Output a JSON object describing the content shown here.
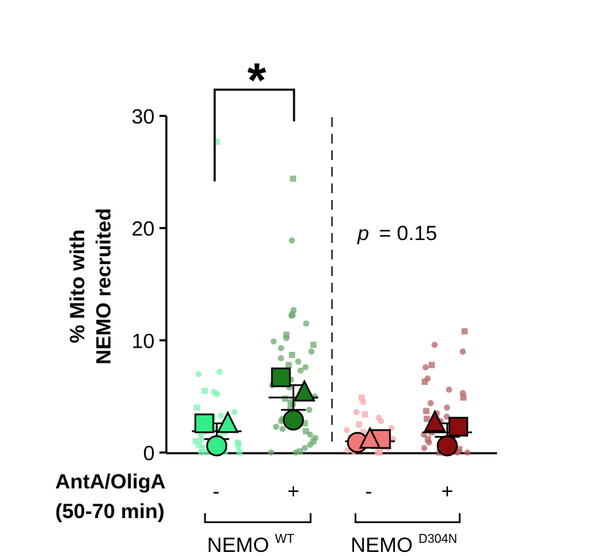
{
  "chart_data": {
    "type": "scatter",
    "title": "",
    "ylabel_line1": "% Mito with",
    "ylabel_line2": "NEMO recruited",
    "ylim": [
      0,
      30
    ],
    "yticks": [
      0,
      10,
      20,
      30
    ],
    "ytick_labels": [
      "0",
      "10",
      "20",
      "30"
    ],
    "row_label_line1": "AntA/OligA",
    "row_label_line2": "(50-70 min)",
    "conditions": [
      "-",
      "+",
      "-",
      "+"
    ],
    "groups": [
      {
        "name": "NEMO",
        "superscript": "WT"
      },
      {
        "name": "NEMO",
        "superscript": "D304N"
      }
    ],
    "significance": {
      "marker": "*",
      "between": [
        0,
        1
      ]
    },
    "pvalue": {
      "label": "p",
      "text": "= 0.15",
      "group": 1
    },
    "colors": {
      "wt_minus": "#33ee88",
      "wt_plus": "#1b7a1b",
      "wt_plus_light": "#6ab86a",
      "d_minus": "#f07878",
      "d_minus_light": "#f4a0a0",
      "d_plus": "#8b0d0d",
      "d_plus_light": "#b25050"
    },
    "series": [
      {
        "name": "NEMO WT, AntA/OligA -",
        "category": 0,
        "color": "#33ee88",
        "points": [
          27.7,
          7.2,
          7.0,
          5.5,
          5.4,
          5.2,
          4.0,
          3.6,
          3.3,
          3.1,
          2.8,
          2.6,
          2.5,
          2.3,
          2.1,
          1.9,
          1.8,
          1.6,
          1.4,
          1.3,
          1.2,
          1.0,
          0.9,
          0.8,
          0.7,
          0.6,
          0.5,
          0.4,
          0.3,
          0.2,
          0.1,
          0.0,
          0.0,
          0.0
        ],
        "replicates": [
          {
            "shape": "square",
            "value": 2.6
          },
          {
            "shape": "triangle",
            "value": 2.5
          },
          {
            "shape": "circle",
            "value": 0.6
          }
        ],
        "mean": 1.9,
        "sem_low": 1.2,
        "sem_high": 2.6
      },
      {
        "name": "NEMO WT, AntA/OligA +",
        "category": 1,
        "color": "#1b7a1b",
        "points": [
          24.4,
          18.9,
          12.7,
          12.3,
          12.2,
          11.5,
          10.5,
          10.2,
          9.9,
          9.6,
          9.3,
          9.0,
          8.7,
          8.4,
          8.1,
          7.8,
          7.6,
          7.3,
          7.0,
          6.8,
          6.5,
          6.2,
          6.0,
          5.8,
          5.5,
          5.2,
          5.0,
          4.8,
          4.5,
          4.3,
          4.0,
          3.8,
          3.6,
          3.3,
          3.0,
          2.8,
          2.6,
          2.3,
          2.1,
          1.9,
          1.6,
          1.3,
          1.0,
          0.7,
          0.4,
          0.1,
          0.0,
          0.0
        ],
        "replicates": [
          {
            "shape": "square",
            "value": 6.7
          },
          {
            "shape": "triangle",
            "value": 5.3
          },
          {
            "shape": "circle",
            "value": 2.9
          }
        ],
        "mean": 4.9,
        "sem_low": 3.8,
        "sem_high": 6.0
      },
      {
        "name": "NEMO D304N, AntA/OligA -",
        "category": 2,
        "color": "#f07878",
        "points": [
          4.9,
          4.5,
          3.6,
          3.4,
          3.1,
          2.8,
          2.5,
          2.2,
          2.0,
          1.8,
          1.6,
          1.4,
          1.3,
          1.2,
          1.0,
          0.9,
          0.8,
          0.7,
          0.6,
          0.5,
          0.4,
          0.3,
          0.2,
          0.1,
          0.0,
          0.0,
          0.0
        ],
        "replicates": [
          {
            "shape": "circle",
            "value": 0.9
          },
          {
            "shape": "square",
            "value": 1.2
          },
          {
            "shape": "triangle",
            "value": 1.1
          }
        ],
        "mean": 1.0,
        "sem_low": 0.9,
        "sem_high": 1.2
      },
      {
        "name": "NEMO D304N, AntA/OligA +",
        "category": 3,
        "color": "#8b0d0d",
        "points": [
          10.8,
          9.6,
          9.0,
          7.8,
          7.6,
          6.6,
          6.3,
          5.6,
          5.3,
          4.9,
          4.4,
          4.0,
          3.7,
          3.5,
          3.2,
          3.0,
          2.8,
          2.6,
          2.4,
          2.2,
          2.0,
          1.8,
          1.6,
          1.4,
          1.2,
          1.0,
          0.9,
          0.7,
          0.5,
          0.4,
          0.3,
          0.2,
          0.1,
          0.0,
          0.0,
          0.0
        ],
        "replicates": [
          {
            "shape": "triangle",
            "value": 2.6
          },
          {
            "shape": "square",
            "value": 2.3
          },
          {
            "shape": "circle",
            "value": 0.6
          }
        ],
        "mean": 1.8,
        "sem_low": 1.4,
        "sem_high": 2.6
      }
    ]
  }
}
